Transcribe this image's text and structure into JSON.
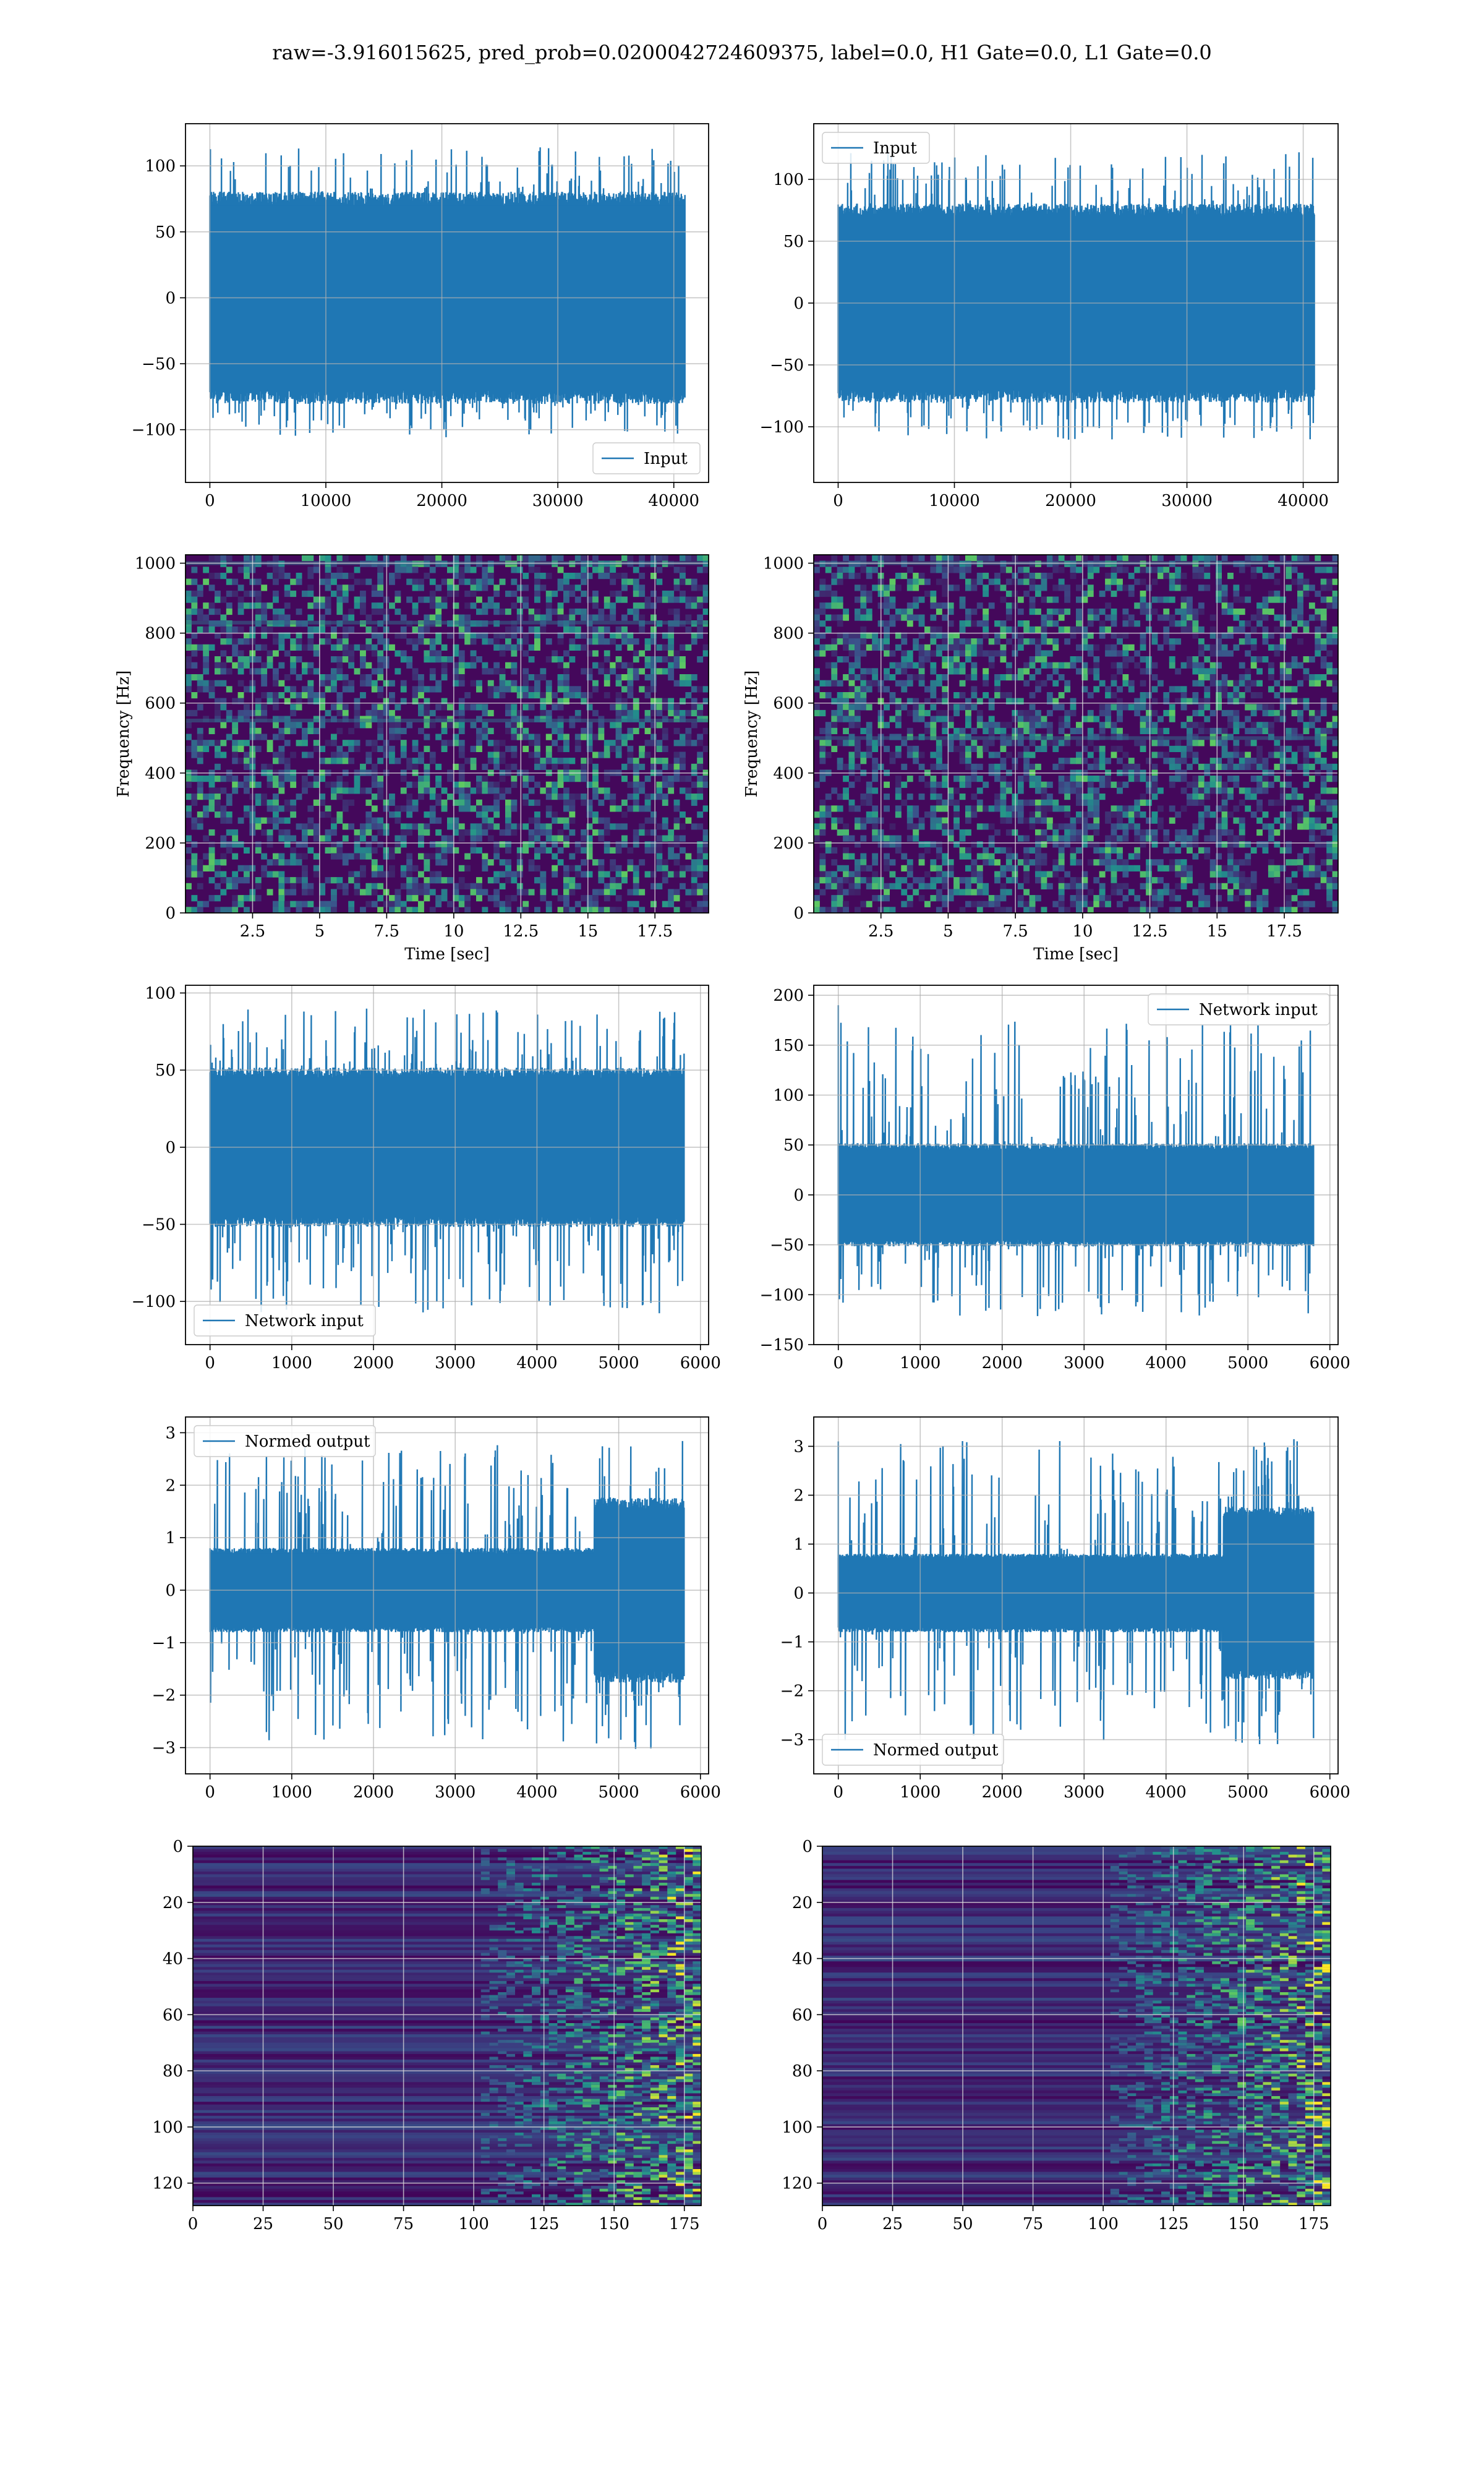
{
  "figure": {
    "suptitle": "raw=-3.916015625, pred_prob=0.0200042724609375, label=0.0, H1 Gate=0.0, L1 Gate=0.0",
    "colors": {
      "line": "#1f77b4",
      "grid": "#b0b0b0",
      "spec_bg": "#44085b",
      "heat_bg": "#3b0f70"
    }
  },
  "chart_data": [
    {
      "id": "input-h1",
      "type": "line",
      "series": [
        {
          "name": "Input",
          "x_range": [
            0,
            40960
          ],
          "y_envelope": [
            -110,
            120
          ],
          "y_bulk": [
            -70,
            70
          ],
          "peak_at": []
        }
      ],
      "xlim": [
        -2100,
        43000
      ],
      "ylim": [
        -140,
        132
      ],
      "xticks": [
        0,
        10000,
        20000,
        30000,
        40000
      ],
      "yticks": [
        -100,
        -50,
        0,
        50,
        100
      ],
      "legend": "lower right",
      "xlabel": "",
      "ylabel": "",
      "grid": true
    },
    {
      "id": "input-l1",
      "type": "line",
      "series": [
        {
          "name": "Input",
          "x_range": [
            0,
            40960
          ],
          "y_envelope": [
            -115,
            130
          ],
          "y_bulk": [
            -70,
            70
          ],
          "peak_at": []
        }
      ],
      "xlim": [
        -2100,
        43000
      ],
      "ylim": [
        -145,
        145
      ],
      "xticks": [
        0,
        10000,
        20000,
        30000,
        40000
      ],
      "yticks": [
        -100,
        -50,
        0,
        50,
        100
      ],
      "legend": "upper left",
      "xlabel": "",
      "ylabel": "",
      "grid": true
    },
    {
      "id": "spectrogram-h1",
      "type": "heatmap",
      "style": "spectrogram",
      "xlim": [
        0,
        19.5
      ],
      "ylim": [
        0,
        1024
      ],
      "xticks": [
        2.5,
        5.0,
        7.5,
        10.0,
        12.5,
        15.0,
        17.5
      ],
      "yticks": [
        0,
        200,
        400,
        600,
        800,
        1000
      ],
      "xlabel": "Time [sec]",
      "ylabel": "Frequency [Hz]",
      "grid": true,
      "lines_hz": [
        830,
        550,
        1000
      ]
    },
    {
      "id": "spectrogram-l1",
      "type": "heatmap",
      "style": "spectrogram",
      "xlim": [
        0,
        19.5
      ],
      "ylim": [
        0,
        1024
      ],
      "xticks": [
        2.5,
        5.0,
        7.5,
        10.0,
        12.5,
        15.0,
        17.5
      ],
      "yticks": [
        0,
        200,
        400,
        600,
        800,
        1000
      ],
      "xlabel": "Time [sec]",
      "ylabel": "Frequency [Hz]",
      "grid": true,
      "lines_hz": [
        500,
        1000
      ]
    },
    {
      "id": "network-input-h1",
      "type": "line",
      "series": [
        {
          "name": "Network input",
          "x_range": [
            0,
            5800
          ],
          "y_envelope": [
            -115,
            95
          ],
          "y_bulk": [
            -45,
            45
          ],
          "peak_at": []
        }
      ],
      "xlim": [
        -300,
        6100
      ],
      "ylim": [
        -128,
        105
      ],
      "xticks": [
        0,
        1000,
        2000,
        3000,
        4000,
        5000,
        6000
      ],
      "yticks": [
        -100,
        -50,
        0,
        50,
        100
      ],
      "legend": "lower left",
      "xlabel": "",
      "ylabel": "",
      "grid": true
    },
    {
      "id": "network-input-l1",
      "type": "line",
      "series": [
        {
          "name": "Network input",
          "x_range": [
            0,
            5800
          ],
          "y_envelope": [
            -130,
            190
          ],
          "y_bulk": [
            -45,
            45
          ],
          "peak_at": [
            0,
            190
          ]
        }
      ],
      "xlim": [
        -300,
        6100
      ],
      "ylim": [
        -150,
        210
      ],
      "xticks": [
        0,
        1000,
        2000,
        3000,
        4000,
        5000,
        6000
      ],
      "yticks": [
        -150,
        -100,
        -50,
        0,
        50,
        100,
        150,
        200
      ],
      "legend": "upper right",
      "xlabel": "",
      "ylabel": "",
      "grid": true
    },
    {
      "id": "normed-output-h1",
      "type": "line",
      "series": [
        {
          "name": "Normed output",
          "x_range": [
            0,
            5800
          ],
          "y_envelope": [
            -3.2,
            3.0
          ],
          "y_bulk": [
            -0.7,
            0.7
          ],
          "burst_from": 4700,
          "peak_at": []
        }
      ],
      "xlim": [
        -300,
        6100
      ],
      "ylim": [
        -3.5,
        3.3
      ],
      "xticks": [
        0,
        1000,
        2000,
        3000,
        4000,
        5000,
        6000
      ],
      "yticks": [
        -3,
        -2,
        -1,
        0,
        1,
        2,
        3
      ],
      "legend": "upper left",
      "xlabel": "",
      "ylabel": "",
      "grid": true
    },
    {
      "id": "normed-output-l1",
      "type": "line",
      "series": [
        {
          "name": "Normed output",
          "x_range": [
            0,
            5800
          ],
          "y_envelope": [
            -3.3,
            3.4
          ],
          "y_bulk": [
            -0.7,
            0.7
          ],
          "burst_from": 4700,
          "peak_at": [
            0,
            3.1
          ]
        }
      ],
      "xlim": [
        -300,
        6100
      ],
      "ylim": [
        -3.7,
        3.6
      ],
      "xticks": [
        0,
        1000,
        2000,
        3000,
        4000,
        5000,
        6000
      ],
      "yticks": [
        -3,
        -2,
        -1,
        0,
        1,
        2,
        3
      ],
      "legend": "lower left",
      "xlabel": "",
      "ylabel": "",
      "grid": true
    },
    {
      "id": "feature-map-h1",
      "type": "heatmap",
      "style": "featuremap",
      "xlim": [
        0,
        181
      ],
      "ylim": [
        128,
        0
      ],
      "xticks": [
        0,
        25,
        50,
        75,
        100,
        125,
        150,
        175
      ],
      "yticks": [
        0,
        20,
        40,
        60,
        80,
        100,
        120
      ],
      "xlabel": "",
      "ylabel": "",
      "grid": true,
      "activity_from": 100
    },
    {
      "id": "feature-map-l1",
      "type": "heatmap",
      "style": "featuremap",
      "xlim": [
        0,
        181
      ],
      "ylim": [
        128,
        0
      ],
      "xticks": [
        0,
        25,
        50,
        75,
        100,
        125,
        150,
        175
      ],
      "yticks": [
        0,
        20,
        40,
        60,
        80,
        100,
        120
      ],
      "xlabel": "",
      "ylabel": "",
      "grid": true,
      "activity_from": 100
    }
  ]
}
